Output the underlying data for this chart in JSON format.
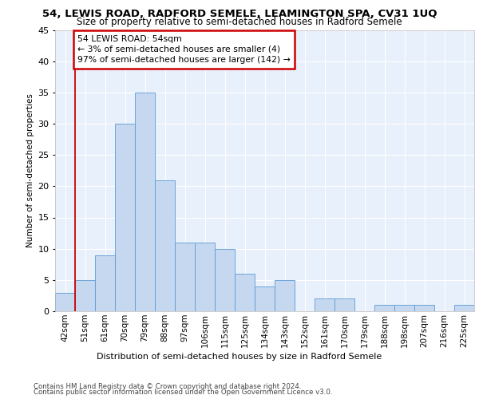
{
  "title1": "54, LEWIS ROAD, RADFORD SEMELE, LEAMINGTON SPA, CV31 1UQ",
  "title2": "Size of property relative to semi-detached houses in Radford Semele",
  "xlabel": "Distribution of semi-detached houses by size in Radford Semele",
  "ylabel": "Number of semi-detached properties",
  "categories": [
    "42sqm",
    "51sqm",
    "61sqm",
    "70sqm",
    "79sqm",
    "88sqm",
    "97sqm",
    "106sqm",
    "115sqm",
    "125sqm",
    "134sqm",
    "143sqm",
    "152sqm",
    "161sqm",
    "170sqm",
    "179sqm",
    "188sqm",
    "198sqm",
    "207sqm",
    "216sqm",
    "225sqm"
  ],
  "values": [
    3,
    5,
    9,
    30,
    35,
    21,
    11,
    11,
    10,
    6,
    4,
    5,
    0,
    2,
    2,
    0,
    1,
    1,
    1,
    0,
    1
  ],
  "bar_color": "#c5d8f0",
  "bar_edge_color": "#5b9bd5",
  "annotation_title": "54 LEWIS ROAD: 54sqm",
  "annotation_line1": "← 3% of semi-detached houses are smaller (4)",
  "annotation_line2": "97% of semi-detached houses are larger (142) →",
  "annotation_box_color": "#ffffff",
  "annotation_box_edge": "#cc0000",
  "highlight_line_color": "#cc0000",
  "footer1": "Contains HM Land Registry data © Crown copyright and database right 2024.",
  "footer2": "Contains public sector information licensed under the Open Government Licence v3.0.",
  "ylim": [
    0,
    45
  ],
  "yticks": [
    0,
    5,
    10,
    15,
    20,
    25,
    30,
    35,
    40,
    45
  ],
  "plot_bg_color": "#e8f0fb",
  "title1_fontsize": 9.5,
  "title2_fontsize": 8.5,
  "footer_fontsize": 6.2,
  "ylabel_fontsize": 7.5,
  "xlabel_fontsize": 8.0,
  "tick_fontsize": 7.5,
  "ytick_fontsize": 8.0,
  "ann_fontsize": 7.8
}
